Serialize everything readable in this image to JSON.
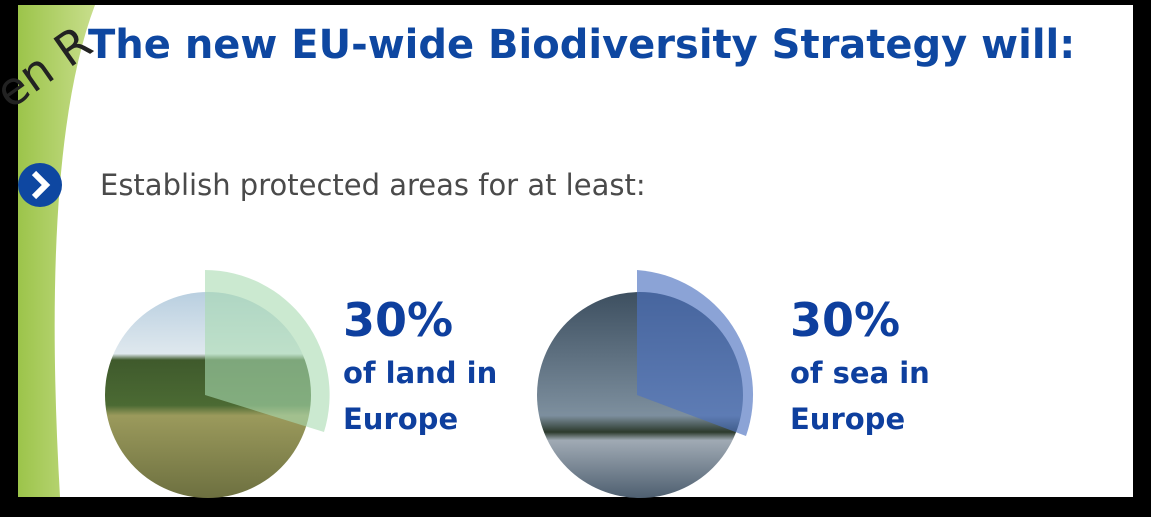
{
  "watermark": "en R",
  "title": "The new EU-wide Biodiversity Strategy will:",
  "bullet": "Establish protected areas for at least:",
  "items": [
    {
      "percent": "30%",
      "lines": [
        "of land in",
        "Europe"
      ]
    },
    {
      "percent": "30%",
      "lines": [
        "of sea in",
        "Europe"
      ]
    }
  ]
}
